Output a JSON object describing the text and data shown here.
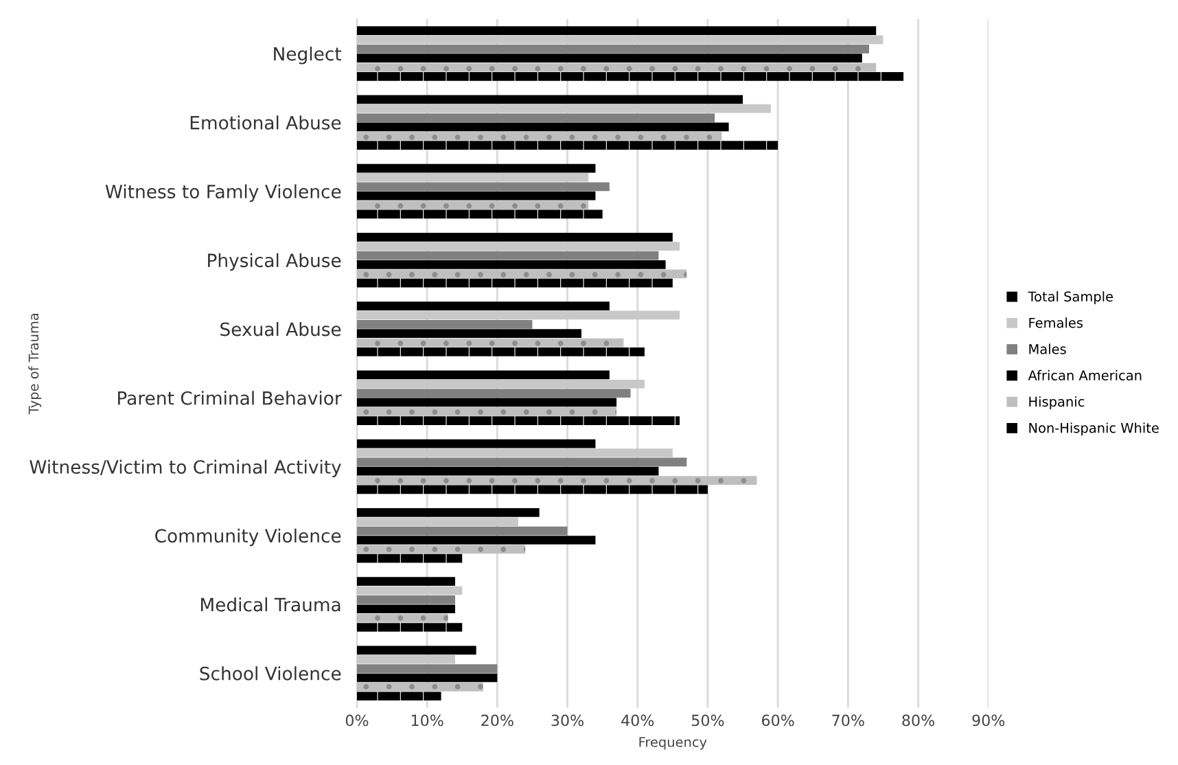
{
  "chart_data": {
    "type": "bar",
    "orientation": "horizontal",
    "xlabel": "Frequency",
    "ylabel": "Type of Trauma",
    "categories": [
      "Neglect",
      "Emotional Abuse",
      "Witness to Famly Violence",
      "Physical Abuse",
      "Sexual Abuse",
      "Parent Criminal Behavior",
      "Witness/Victim to Criminal Activity",
      "Community Violence",
      "Medical Trauma",
      "School Violence"
    ],
    "series": [
      {
        "name": "Total Sample",
        "color": "#000000",
        "values": [
          74,
          55,
          34,
          45,
          36,
          36,
          34,
          26,
          14,
          17
        ]
      },
      {
        "name": "Females",
        "color": "#c8c8c8",
        "values": [
          75,
          59,
          33,
          46,
          46,
          41,
          45,
          23,
          15,
          14
        ]
      },
      {
        "name": "Males",
        "color": "#808080",
        "values": [
          73,
          51,
          36,
          43,
          25,
          39,
          47,
          30,
          14,
          20
        ]
      },
      {
        "name": "African American",
        "color": "#000000",
        "values": [
          72,
          53,
          34,
          44,
          32,
          37,
          43,
          34,
          14,
          20
        ]
      },
      {
        "name": "Hispanic",
        "color": "#bfbfbf",
        "values": [
          74,
          52,
          33,
          47,
          38,
          37,
          57,
          24,
          13,
          18
        ]
      },
      {
        "name": "Non-Hispanic White",
        "color": "#000000",
        "values": [
          78,
          60,
          35,
          45,
          41,
          46,
          50,
          15,
          15,
          12
        ]
      }
    ],
    "xlim": [
      0,
      90
    ],
    "xticks": [
      {
        "value": 0,
        "label": "0%"
      },
      {
        "value": 10,
        "label": "10%"
      },
      {
        "value": 20,
        "label": "20%"
      },
      {
        "value": 30,
        "label": "30%"
      },
      {
        "value": 40,
        "label": "40%"
      },
      {
        "value": 50,
        "label": "50%"
      },
      {
        "value": 60,
        "label": "60%"
      },
      {
        "value": 70,
        "label": "70%"
      },
      {
        "value": 80,
        "label": "80%"
      },
      {
        "value": 90,
        "label": "90%"
      }
    ],
    "grid": "x",
    "legend": "right"
  }
}
